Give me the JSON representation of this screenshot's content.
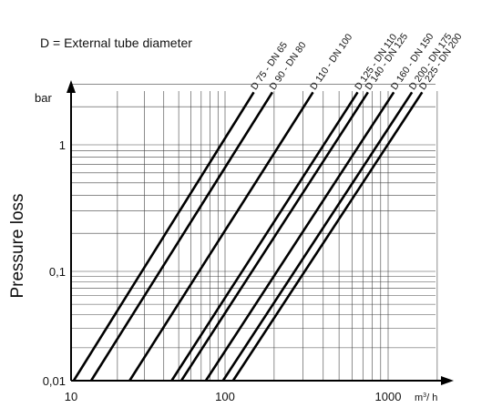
{
  "chart_data": {
    "type": "line",
    "title": "",
    "note": "D = External tube diameter",
    "ylabel": "Pressure loss",
    "y_unit": "bar",
    "x_unit_base": "m",
    "x_unit_sup": "3",
    "x_unit_rest": "/ h",
    "x_scale": "log",
    "y_scale": "log",
    "xlim": [
      10,
      2000
    ],
    "ylim": [
      0.01,
      3
    ],
    "grid": true,
    "x_ticks": [
      {
        "value": 10,
        "label": "10"
      },
      {
        "value": 100,
        "label": "100"
      },
      {
        "value": 1000,
        "label": "1000"
      }
    ],
    "y_ticks": [
      {
        "value": 0.01,
        "label": "0,01"
      },
      {
        "value": 0.1,
        "label": "0,1"
      },
      {
        "value": 1,
        "label": "1"
      }
    ],
    "series": [
      {
        "name": "D 75 - DN 65",
        "x": [
          10.4,
          150
        ],
        "y": [
          0.01,
          2.6
        ]
      },
      {
        "name": "D 90 - DN 80",
        "x": [
          13.5,
          195
        ],
        "y": [
          0.01,
          2.6
        ]
      },
      {
        "name": "D 110 - DN 100",
        "x": [
          24,
          346
        ],
        "y": [
          0.01,
          2.6
        ]
      },
      {
        "name": "D 125 - DN 110",
        "x": [
          45,
          650
        ],
        "y": [
          0.01,
          2.6
        ]
      },
      {
        "name": "D 140 - DN 125",
        "x": [
          52,
          752
        ],
        "y": [
          0.01,
          2.6
        ]
      },
      {
        "name": "D 160 - DN 150",
        "x": [
          75,
          1083
        ],
        "y": [
          0.01,
          2.6
        ]
      },
      {
        "name": "D 200 - DN 175",
        "x": [
          97,
          1400
        ],
        "y": [
          0.01,
          2.6
        ]
      },
      {
        "name": "D 225 - DN 200",
        "x": [
          112,
          1616
        ],
        "y": [
          0.01,
          2.6
        ]
      }
    ]
  }
}
